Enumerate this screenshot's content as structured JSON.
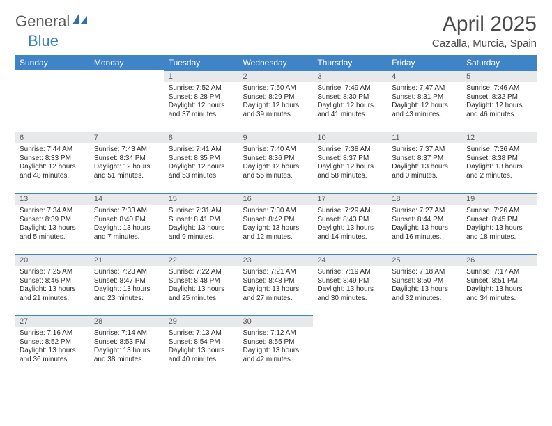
{
  "logo": {
    "text1": "General",
    "text2": "Blue"
  },
  "title": "April 2025",
  "location": "Cazalla, Murcia, Spain",
  "dayNames": [
    "Sunday",
    "Monday",
    "Tuesday",
    "Wednesday",
    "Thursday",
    "Friday",
    "Saturday"
  ],
  "colors": {
    "header_bg": "#3e84c6",
    "header_text": "#ffffff",
    "datebar_bg": "#e8e9eb",
    "datebar_border": "#3e84c6",
    "body_text": "#2b2b2b",
    "title_text": "#4a4a4a",
    "logo_gray": "#595959",
    "logo_blue": "#3a7fc4"
  },
  "weeks": [
    [
      {
        "empty": true
      },
      {
        "empty": true
      },
      {
        "date": "1",
        "sunrise": "7:52 AM",
        "sunset": "8:28 PM",
        "daylight": "12 hours and 37 minutes."
      },
      {
        "date": "2",
        "sunrise": "7:50 AM",
        "sunset": "8:29 PM",
        "daylight": "12 hours and 39 minutes."
      },
      {
        "date": "3",
        "sunrise": "7:49 AM",
        "sunset": "8:30 PM",
        "daylight": "12 hours and 41 minutes."
      },
      {
        "date": "4",
        "sunrise": "7:47 AM",
        "sunset": "8:31 PM",
        "daylight": "12 hours and 43 minutes."
      },
      {
        "date": "5",
        "sunrise": "7:46 AM",
        "sunset": "8:32 PM",
        "daylight": "12 hours and 46 minutes."
      }
    ],
    [
      {
        "date": "6",
        "sunrise": "7:44 AM",
        "sunset": "8:33 PM",
        "daylight": "12 hours and 48 minutes."
      },
      {
        "date": "7",
        "sunrise": "7:43 AM",
        "sunset": "8:34 PM",
        "daylight": "12 hours and 51 minutes."
      },
      {
        "date": "8",
        "sunrise": "7:41 AM",
        "sunset": "8:35 PM",
        "daylight": "12 hours and 53 minutes."
      },
      {
        "date": "9",
        "sunrise": "7:40 AM",
        "sunset": "8:36 PM",
        "daylight": "12 hours and 55 minutes."
      },
      {
        "date": "10",
        "sunrise": "7:38 AM",
        "sunset": "8:37 PM",
        "daylight": "12 hours and 58 minutes."
      },
      {
        "date": "11",
        "sunrise": "7:37 AM",
        "sunset": "8:37 PM",
        "daylight": "13 hours and 0 minutes."
      },
      {
        "date": "12",
        "sunrise": "7:36 AM",
        "sunset": "8:38 PM",
        "daylight": "13 hours and 2 minutes."
      }
    ],
    [
      {
        "date": "13",
        "sunrise": "7:34 AM",
        "sunset": "8:39 PM",
        "daylight": "13 hours and 5 minutes."
      },
      {
        "date": "14",
        "sunrise": "7:33 AM",
        "sunset": "8:40 PM",
        "daylight": "13 hours and 7 minutes."
      },
      {
        "date": "15",
        "sunrise": "7:31 AM",
        "sunset": "8:41 PM",
        "daylight": "13 hours and 9 minutes."
      },
      {
        "date": "16",
        "sunrise": "7:30 AM",
        "sunset": "8:42 PM",
        "daylight": "13 hours and 12 minutes."
      },
      {
        "date": "17",
        "sunrise": "7:29 AM",
        "sunset": "8:43 PM",
        "daylight": "13 hours and 14 minutes."
      },
      {
        "date": "18",
        "sunrise": "7:27 AM",
        "sunset": "8:44 PM",
        "daylight": "13 hours and 16 minutes."
      },
      {
        "date": "19",
        "sunrise": "7:26 AM",
        "sunset": "8:45 PM",
        "daylight": "13 hours and 18 minutes."
      }
    ],
    [
      {
        "date": "20",
        "sunrise": "7:25 AM",
        "sunset": "8:46 PM",
        "daylight": "13 hours and 21 minutes."
      },
      {
        "date": "21",
        "sunrise": "7:23 AM",
        "sunset": "8:47 PM",
        "daylight": "13 hours and 23 minutes."
      },
      {
        "date": "22",
        "sunrise": "7:22 AM",
        "sunset": "8:48 PM",
        "daylight": "13 hours and 25 minutes."
      },
      {
        "date": "23",
        "sunrise": "7:21 AM",
        "sunset": "8:48 PM",
        "daylight": "13 hours and 27 minutes."
      },
      {
        "date": "24",
        "sunrise": "7:19 AM",
        "sunset": "8:49 PM",
        "daylight": "13 hours and 30 minutes."
      },
      {
        "date": "25",
        "sunrise": "7:18 AM",
        "sunset": "8:50 PM",
        "daylight": "13 hours and 32 minutes."
      },
      {
        "date": "26",
        "sunrise": "7:17 AM",
        "sunset": "8:51 PM",
        "daylight": "13 hours and 34 minutes."
      }
    ],
    [
      {
        "date": "27",
        "sunrise": "7:16 AM",
        "sunset": "8:52 PM",
        "daylight": "13 hours and 36 minutes."
      },
      {
        "date": "28",
        "sunrise": "7:14 AM",
        "sunset": "8:53 PM",
        "daylight": "13 hours and 38 minutes."
      },
      {
        "date": "29",
        "sunrise": "7:13 AM",
        "sunset": "8:54 PM",
        "daylight": "13 hours and 40 minutes."
      },
      {
        "date": "30",
        "sunrise": "7:12 AM",
        "sunset": "8:55 PM",
        "daylight": "13 hours and 42 minutes."
      },
      {
        "empty": true
      },
      {
        "empty": true
      },
      {
        "empty": true
      }
    ]
  ],
  "labels": {
    "sunrise": "Sunrise:",
    "sunset": "Sunset:",
    "daylight": "Daylight:"
  }
}
